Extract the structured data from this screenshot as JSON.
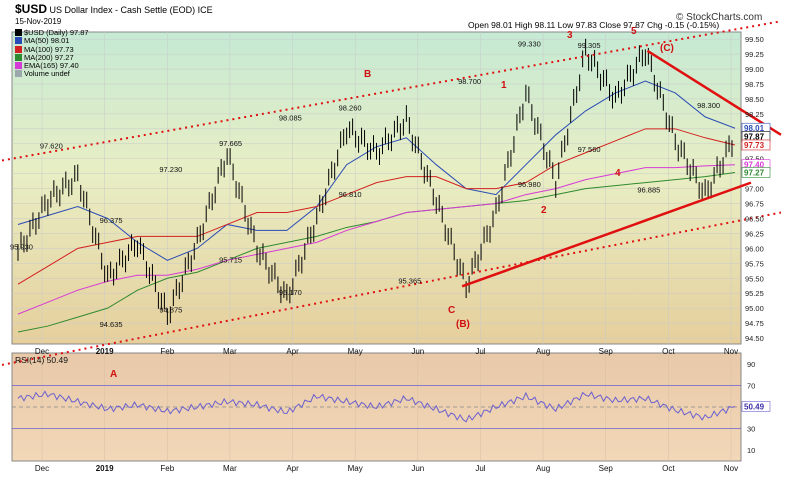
{
  "header": {
    "symbol": "$USD",
    "name": "US Dollar Index - Cash Settle (EOD) ICE",
    "date": "15-Nov-2019",
    "ohlc": "Open 98.01  High 98.11  Low 97.83  Close 97.87  Chg -0.15 (-0.15%)",
    "brand": "© StockCharts.com"
  },
  "legend": [
    {
      "label": "$USD (Daily) 97.87",
      "color": "#000000"
    },
    {
      "label": "MA(50) 98.01",
      "color": "#2a4bb5"
    },
    {
      "label": "MA(100) 97.73",
      "color": "#d32020"
    },
    {
      "label": "MA(200) 97.27",
      "color": "#2f8a2f"
    },
    {
      "label": "EMA(165) 97.40",
      "color": "#d63ad6"
    },
    {
      "label": "Volume undef",
      "color": "#9aa7ad"
    }
  ],
  "chart_data": [
    {
      "type": "line",
      "title": "$USD US Dollar Index - Cash Settle (EOD) ICE",
      "x_ticks": [
        "Dec",
        "2019",
        "Feb",
        "Mar",
        "Apr",
        "May",
        "Jun",
        "Jul",
        "Aug",
        "Sep",
        "Oct",
        "Nov"
      ],
      "y_ticks": [
        94.5,
        94.75,
        95.0,
        95.25,
        95.5,
        95.75,
        96.0,
        96.25,
        96.5,
        96.75,
        97.0,
        97.25,
        97.5,
        97.75,
        98.0,
        98.25,
        98.5,
        98.75,
        99.0,
        99.25,
        99.5
      ],
      "ylim": [
        94.4,
        99.62
      ],
      "x": [
        "Nov 2018",
        "Dec 2018",
        "Dec 2018",
        "Jan 2019",
        "Jan 2019",
        "Feb 2019",
        "Feb 2019",
        "Mar 2019",
        "Mar 2019",
        "Apr 2019",
        "Apr 2019",
        "May 2019",
        "May 2019",
        "Jun 2019",
        "Jun 2019",
        "Jul 2019",
        "Jul 2019",
        "Aug 2019",
        "Aug 2019",
        "Sep 2019",
        "Sep 2019",
        "Oct 2019",
        "Oct 2019",
        "Nov 2019",
        "Nov 2019"
      ],
      "series": [
        {
          "name": "$USD (Daily)",
          "values": [
            95.93,
            96.8,
            97.2,
            95.5,
            96.1,
            94.88,
            96.1,
            97.58,
            96.0,
            95.17,
            96.5,
            98.0,
            97.6,
            98.15,
            96.8,
            95.37,
            96.6,
            98.6,
            97.1,
            99.3,
            98.5,
            99.3,
            97.8,
            96.9,
            97.87
          ]
        },
        {
          "name": "MA(50)",
          "values": [
            96.4,
            96.55,
            96.7,
            96.5,
            96.1,
            95.8,
            96.0,
            96.4,
            96.3,
            96.3,
            96.7,
            97.4,
            97.7,
            97.85,
            97.4,
            97.0,
            96.9,
            97.4,
            97.9,
            98.3,
            98.6,
            98.8,
            98.6,
            98.2,
            98.01
          ]
        },
        {
          "name": "MA(100)",
          "values": [
            95.4,
            95.7,
            96.0,
            96.1,
            96.2,
            96.2,
            96.2,
            96.4,
            96.6,
            96.6,
            96.7,
            96.9,
            97.1,
            97.2,
            97.2,
            97.0,
            97.0,
            97.1,
            97.4,
            97.6,
            97.8,
            98.0,
            98.0,
            97.85,
            97.73
          ]
        },
        {
          "name": "MA(200)",
          "values": [
            94.6,
            94.7,
            94.85,
            95.0,
            95.3,
            95.5,
            95.6,
            95.8,
            96.0,
            96.1,
            96.2,
            96.35,
            96.45,
            96.6,
            96.65,
            96.7,
            96.75,
            96.8,
            96.9,
            97.0,
            97.05,
            97.1,
            97.15,
            97.2,
            97.27
          ]
        },
        {
          "name": "EMA(165)",
          "values": [
            94.9,
            95.1,
            95.3,
            95.45,
            95.55,
            95.55,
            95.65,
            95.8,
            95.9,
            96.0,
            96.1,
            96.3,
            96.45,
            96.6,
            96.65,
            96.7,
            96.75,
            96.9,
            97.0,
            97.15,
            97.25,
            97.35,
            97.35,
            97.38,
            97.4
          ]
        }
      ],
      "price_labels": [
        {
          "x": "Nov 2018",
          "y": 95.93,
          "text": "95.930"
        },
        {
          "x": "Dec 2018",
          "y": 97.62,
          "text": "97.620"
        },
        {
          "x": "Jan 2019",
          "y": 96.375,
          "text": "96.375"
        },
        {
          "x": "Jan 2019",
          "y": 94.635,
          "text": "94.635"
        },
        {
          "x": "Feb 2019",
          "y": 94.875,
          "text": "94.875"
        },
        {
          "x": "Feb 2019",
          "y": 97.23,
          "text": "97.230"
        },
        {
          "x": "Mar 2019",
          "y": 95.715,
          "text": "95.715"
        },
        {
          "x": "Mar 2019",
          "y": 97.665,
          "text": "97.665"
        },
        {
          "x": "Apr 2019",
          "y": 95.17,
          "text": "95.170"
        },
        {
          "x": "Apr 2019",
          "y": 98.085,
          "text": "98.085"
        },
        {
          "x": "May 2019",
          "y": 98.26,
          "text": "98.260"
        },
        {
          "x": "May 2019",
          "y": 96.81,
          "text": "96.810"
        },
        {
          "x": "Jun 2019",
          "y": 95.365,
          "text": "95.365"
        },
        {
          "x": "Jul 2019",
          "y": 98.7,
          "text": "98.700"
        },
        {
          "x": "Aug 2019",
          "y": 96.98,
          "text": "96.980"
        },
        {
          "x": "Aug 2019",
          "y": 99.33,
          "text": "99.330"
        },
        {
          "x": "Sep 2019",
          "y": 97.56,
          "text": "97.560"
        },
        {
          "x": "Sep 2019",
          "y": 99.305,
          "text": "99.305"
        },
        {
          "x": "Oct 2019",
          "y": 96.885,
          "text": "96.885"
        },
        {
          "x": "Nov 2019",
          "y": 98.3,
          "text": "98.300"
        }
      ],
      "wave_labels": [
        {
          "text": "A"
        },
        {
          "text": "B"
        },
        {
          "text": "C"
        },
        {
          "text": "(B)"
        },
        {
          "text": "1"
        },
        {
          "text": "2"
        },
        {
          "text": "3"
        },
        {
          "text": "4"
        },
        {
          "text": "5"
        },
        {
          "text": "(C)"
        }
      ],
      "right_tags": [
        {
          "value": 98.01,
          "text": "98.01",
          "color": "#2a4bb5"
        },
        {
          "value": 97.87,
          "text": "97.87",
          "color": "#000000"
        },
        {
          "value": 97.73,
          "text": "97.73",
          "color": "#d32020"
        },
        {
          "value": 97.4,
          "text": "97.40",
          "color": "#d63ad6"
        },
        {
          "value": 97.27,
          "text": "97.27",
          "color": "#2f8a2f"
        }
      ],
      "grid": true
    },
    {
      "type": "line",
      "title": "RSI(14) 50.49",
      "y_ticks": [
        10,
        30,
        50,
        70,
        90
      ],
      "ylim": [
        0,
        100
      ],
      "x_ticks": [
        "Dec",
        "2019",
        "Feb",
        "Mar",
        "Apr",
        "May",
        "Jun",
        "Jul",
        "Aug",
        "Sep",
        "Oct",
        "Nov"
      ],
      "series": [
        {
          "name": "RSI(14)",
          "values": [
            58,
            62,
            55,
            48,
            52,
            46,
            50,
            55,
            52,
            45,
            60,
            55,
            50,
            58,
            48,
            38,
            50,
            60,
            48,
            62,
            56,
            58,
            47,
            40,
            50.49
          ]
        }
      ],
      "reference_lines": [
        70,
        50,
        30
      ],
      "grid": true
    }
  ],
  "colors": {
    "price": "#000000",
    "trendline": "#e01010",
    "bg_top": "#bfe6d0",
    "bg_bottom": "#ead7a8",
    "rsi_line": "#6b5fd0",
    "rsi_bg": "#ecd2b0"
  }
}
